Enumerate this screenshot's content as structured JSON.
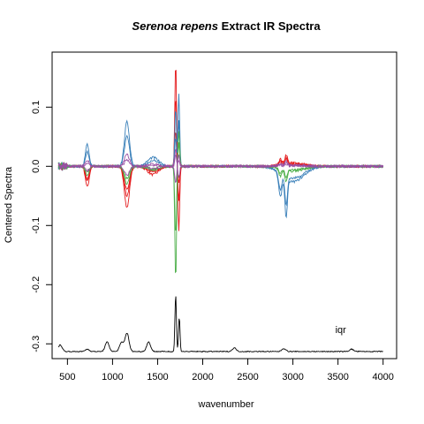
{
  "chart_data": {
    "type": "line",
    "title": {
      "italic": "Serenoa repens",
      "rest": " Extract IR Spectra"
    },
    "xlabel": "wavenumber",
    "ylabel": "Centered Spectra",
    "xlim": [
      330,
      4150
    ],
    "ylim": [
      -0.325,
      0.193
    ],
    "xticks": [
      500,
      1000,
      1500,
      2000,
      2500,
      3000,
      3500,
      4000
    ],
    "xtick_labels": [
      "500",
      "1000",
      "1500",
      "2000",
      "2500",
      "3000",
      "3500",
      "4000"
    ],
    "yticks": [
      -0.3,
      -0.2,
      -0.1,
      0.0,
      0.1
    ],
    "ytick_labels": [
      "-0.3",
      "-0.2",
      "-0.1",
      "0.0",
      "0.1"
    ],
    "annotation": {
      "text": "iqr",
      "x": 3530,
      "y": -0.276
    },
    "colors": [
      "#E41A1C",
      "#377EB8",
      "#4DAF4A",
      "#984EA3"
    ],
    "series_profiles": [
      {
        "color": "#E41A1C",
        "peak_1700": 0.178,
        "trough_1730": -0.11,
        "band_1150": -0.07,
        "band_2900": 0.015
      },
      {
        "color": "#E41A1C",
        "peak_1700": 0.12,
        "trough_1730": -0.06,
        "band_1150": -0.04,
        "band_2900": 0.012
      },
      {
        "color": "#E41A1C",
        "peak_1700": 0.06,
        "trough_1730": -0.03,
        "band_1150": -0.05,
        "band_2900": 0.009
      },
      {
        "color": "#377EB8",
        "peak_1700": 0.1,
        "trough_1730": 0.125,
        "band_1150": 0.075,
        "band_2900": -0.065
      },
      {
        "color": "#377EB8",
        "peak_1700": 0.05,
        "trough_1730": 0.08,
        "band_1150": 0.05,
        "band_2900": -0.05
      },
      {
        "color": "#4DAF4A",
        "peak_1700": -0.197,
        "trough_1730": 0.06,
        "band_1150": -0.03,
        "band_2900": -0.02
      },
      {
        "color": "#4DAF4A",
        "peak_1700": -0.12,
        "trough_1730": 0.04,
        "band_1150": -0.02,
        "band_2900": -0.015
      },
      {
        "color": "#984EA3",
        "peak_1700": 0.03,
        "trough_1730": -0.02,
        "band_1150": 0.02,
        "band_2900": 0.006
      },
      {
        "color": "#984EA3",
        "peak_1700": -0.03,
        "trough_1730": 0.02,
        "band_1150": -0.015,
        "band_2900": 0.004
      },
      {
        "color": "#984EA3",
        "peak_1700": 0.02,
        "trough_1730": 0.01,
        "band_1150": 0.01,
        "band_2900": 0.003
      }
    ],
    "iqr_trace": {
      "color": "#000000",
      "baseline": -0.313,
      "peaks": [
        {
          "x": 420,
          "y": -0.302
        },
        {
          "x": 720,
          "y": -0.309
        },
        {
          "x": 940,
          "y": -0.297
        },
        {
          "x": 1100,
          "y": -0.298
        },
        {
          "x": 1160,
          "y": -0.282
        },
        {
          "x": 1400,
          "y": -0.297
        },
        {
          "x": 1700,
          "y": -0.217
        },
        {
          "x": 1740,
          "y": -0.255
        },
        {
          "x": 2350,
          "y": -0.307
        },
        {
          "x": 2900,
          "y": -0.308
        },
        {
          "x": 3650,
          "y": -0.309
        }
      ]
    }
  }
}
